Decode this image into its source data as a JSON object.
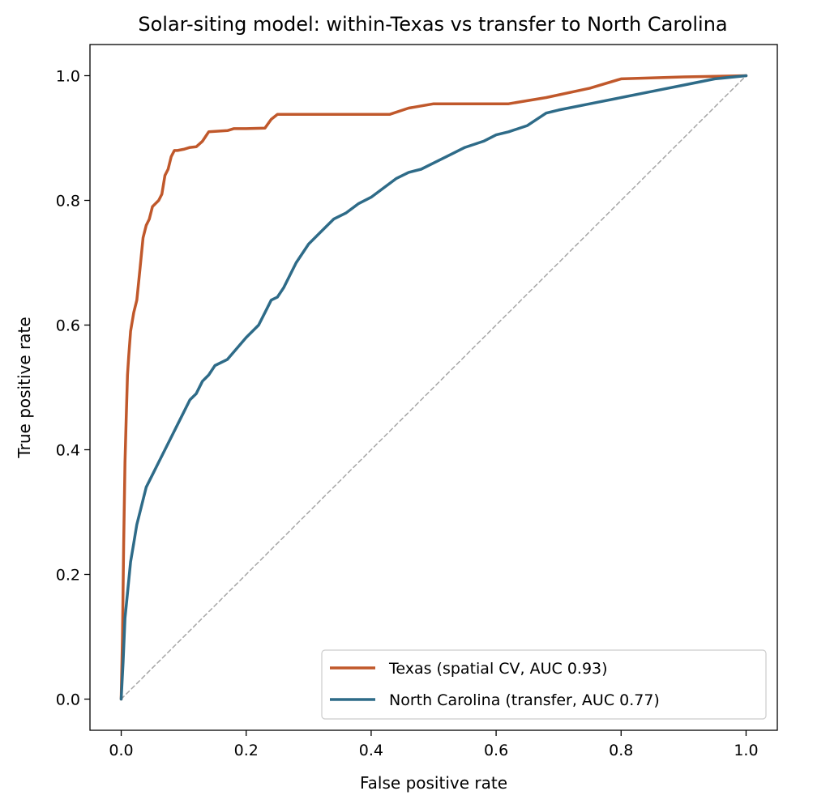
{
  "chart_data": {
    "type": "line",
    "title": "Solar-siting model: within-Texas vs transfer to North Carolina",
    "xlabel": "False positive rate",
    "ylabel": "True positive rate",
    "xlim": [
      -0.05,
      1.05
    ],
    "ylim": [
      -0.05,
      1.05
    ],
    "x_ticks": [
      0.0,
      0.2,
      0.4,
      0.6,
      0.8,
      1.0
    ],
    "y_ticks": [
      0.0,
      0.2,
      0.4,
      0.6,
      0.8,
      1.0
    ],
    "x_tick_labels": [
      "0.0",
      "0.2",
      "0.4",
      "0.6",
      "0.8",
      "1.0"
    ],
    "y_tick_labels": [
      "0.0",
      "0.2",
      "0.4",
      "0.6",
      "0.8",
      "1.0"
    ],
    "grid": false,
    "legend_position": "lower-right",
    "series": [
      {
        "name": "Texas (spatial CV, AUC 0.93)",
        "color": "#c0582b",
        "x": [
          0.0,
          0.002,
          0.004,
          0.006,
          0.008,
          0.01,
          0.012,
          0.015,
          0.02,
          0.025,
          0.03,
          0.035,
          0.04,
          0.045,
          0.05,
          0.06,
          0.065,
          0.07,
          0.075,
          0.08,
          0.085,
          0.09,
          0.1,
          0.11,
          0.12,
          0.13,
          0.14,
          0.17,
          0.18,
          0.2,
          0.23,
          0.24,
          0.25,
          0.3,
          0.35,
          0.43,
          0.46,
          0.5,
          0.55,
          0.62,
          0.68,
          0.75,
          0.8,
          0.9,
          1.0
        ],
        "y": [
          0.0,
          0.1,
          0.25,
          0.38,
          0.45,
          0.52,
          0.55,
          0.59,
          0.62,
          0.64,
          0.69,
          0.74,
          0.76,
          0.77,
          0.79,
          0.8,
          0.81,
          0.84,
          0.85,
          0.87,
          0.88,
          0.88,
          0.882,
          0.885,
          0.886,
          0.895,
          0.91,
          0.912,
          0.915,
          0.915,
          0.916,
          0.93,
          0.938,
          0.938,
          0.938,
          0.938,
          0.948,
          0.955,
          0.955,
          0.955,
          0.965,
          0.98,
          0.995,
          0.998,
          1.0
        ]
      },
      {
        "name": "North Carolina (transfer, AUC 0.77)",
        "color": "#2e6b88",
        "x": [
          0.0,
          0.003,
          0.006,
          0.01,
          0.015,
          0.02,
          0.025,
          0.03,
          0.04,
          0.05,
          0.06,
          0.07,
          0.08,
          0.09,
          0.1,
          0.11,
          0.12,
          0.13,
          0.14,
          0.15,
          0.17,
          0.2,
          0.22,
          0.23,
          0.24,
          0.25,
          0.26,
          0.27,
          0.28,
          0.3,
          0.32,
          0.34,
          0.36,
          0.38,
          0.4,
          0.42,
          0.44,
          0.46,
          0.48,
          0.5,
          0.53,
          0.55,
          0.58,
          0.6,
          0.62,
          0.65,
          0.68,
          0.7,
          0.75,
          0.8,
          0.85,
          0.9,
          0.95,
          1.0
        ],
        "y": [
          0.0,
          0.06,
          0.13,
          0.17,
          0.22,
          0.25,
          0.28,
          0.3,
          0.34,
          0.36,
          0.38,
          0.4,
          0.42,
          0.44,
          0.46,
          0.48,
          0.49,
          0.51,
          0.52,
          0.535,
          0.545,
          0.58,
          0.6,
          0.62,
          0.64,
          0.645,
          0.66,
          0.68,
          0.7,
          0.73,
          0.75,
          0.77,
          0.78,
          0.795,
          0.805,
          0.82,
          0.835,
          0.845,
          0.85,
          0.86,
          0.875,
          0.885,
          0.895,
          0.905,
          0.91,
          0.92,
          0.94,
          0.945,
          0.955,
          0.965,
          0.975,
          0.985,
          0.995,
          1.0
        ]
      },
      {
        "name": "",
        "color": "#a6a6a6",
        "dashed": true,
        "x": [
          0.0,
          1.0
        ],
        "y": [
          0.0,
          1.0
        ]
      }
    ]
  }
}
